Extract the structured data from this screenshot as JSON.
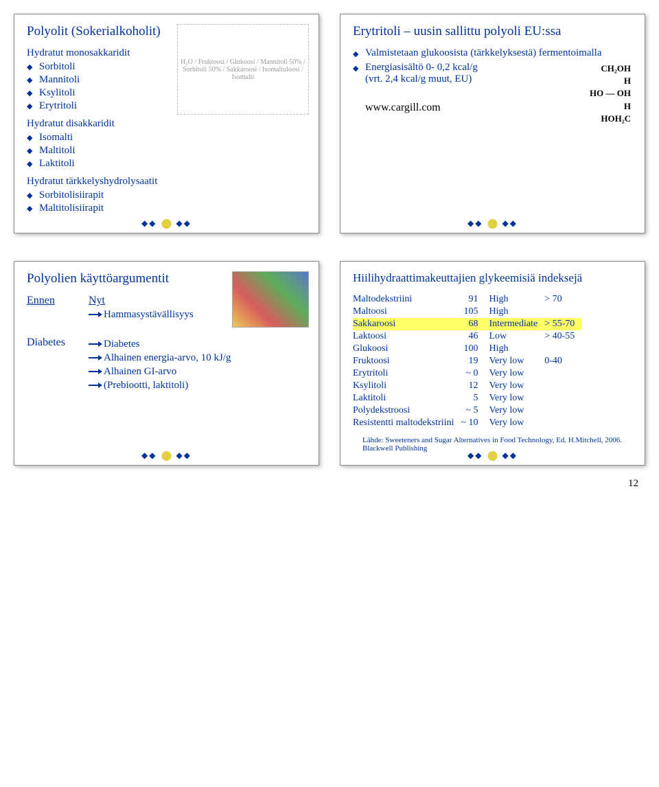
{
  "panel1": {
    "title": "Polyolit (Sokerialkoholit)",
    "group1_title": "Hydratut monosakkaridit",
    "group1_items": [
      "Sorbitoli",
      "Mannitoli",
      "Ksylitoli",
      "Erytritoli"
    ],
    "group2_title": "Hydratut disakkaridit",
    "group2_items": [
      "Isomalti",
      "Maltitoli",
      "Laktitoli"
    ],
    "group3_title": "Hydratut tärkkelyshydrolysaatit",
    "group3_items": [
      "Sorbitolisiirapit",
      "Maltitolisiirapit"
    ],
    "diagram_label": "H₂O / Fruktoosi / Glukoosi / Mannitoli 50% / Sorbitoli 50% / Sakkaroosi / Isomaltuloosi / Isomalti"
  },
  "panel2": {
    "title": "Erytritoli – uusin sallittu polyoli EU:ssa",
    "line1": "Valmistetaan glukoosista (tärkkelyksestä) fermentoimalla",
    "line2a": "Energiasisältö 0- 0,2 kcal/g",
    "line2b": "(vrt. 2,4 kcal/g muut, EU)",
    "link": "www.cargill.com",
    "chem": [
      "CH₂OH",
      "H",
      "HO — OH",
      "H",
      "HOH₂C"
    ]
  },
  "panel3": {
    "title": "Polyolien käyttöargumentit",
    "before_label": "Ennen",
    "now_label": "Nyt",
    "now_items": [
      "Hammasystävällisyys"
    ],
    "before_item": "Diabetes",
    "arrow_items": [
      "Diabetes",
      "Alhainen energia-arvo, 10 kJ/g",
      "Alhainen GI-arvo",
      "(Prebiootti, laktitoli)"
    ]
  },
  "panel4": {
    "title": "Hiilihydraattimakeuttajien glykeemisiä indeksejä",
    "rows": [
      {
        "name": "Maltodekstriini",
        "gi": "91",
        "cls": "High",
        "rng": "> 70",
        "hl": false
      },
      {
        "name": "Maltoosi",
        "gi": "105",
        "cls": "High",
        "rng": "",
        "hl": false
      },
      {
        "name": "Sakkaroosi",
        "gi": "68",
        "cls": "Intermediate",
        "rng": "> 55-70",
        "hl": true
      },
      {
        "name": "Laktoosi",
        "gi": "46",
        "cls": "Low",
        "rng": "> 40-55",
        "hl": false
      },
      {
        "name": "Glukoosi",
        "gi": "100",
        "cls": "High",
        "rng": "",
        "hl": false
      },
      {
        "name": "Fruktoosi",
        "gi": "19",
        "cls": "Very low",
        "rng": "0-40",
        "hl": false
      },
      {
        "name": "Erytritoli",
        "gi": "~ 0",
        "cls": "Very low",
        "rng": "",
        "hl": false
      },
      {
        "name": "Ksylitoli",
        "gi": "12",
        "cls": "Very low",
        "rng": "",
        "hl": false
      },
      {
        "name": "Laktitoli",
        "gi": "5",
        "cls": "Very low",
        "rng": "",
        "hl": false
      },
      {
        "name": "Polydekstroosi",
        "gi": "~ 5",
        "cls": "Very low",
        "rng": "",
        "hl": false
      },
      {
        "name": "Resistentti maltodekstriini",
        "gi": "~ 10",
        "cls": "Very low",
        "rng": "",
        "hl": false
      }
    ],
    "source": "Lähde: Sweeteners and Sugar Alternatives in Food Technology, Ed. H.Mitchell, 2006. Blackwell Publishing"
  },
  "pagenum": "12"
}
